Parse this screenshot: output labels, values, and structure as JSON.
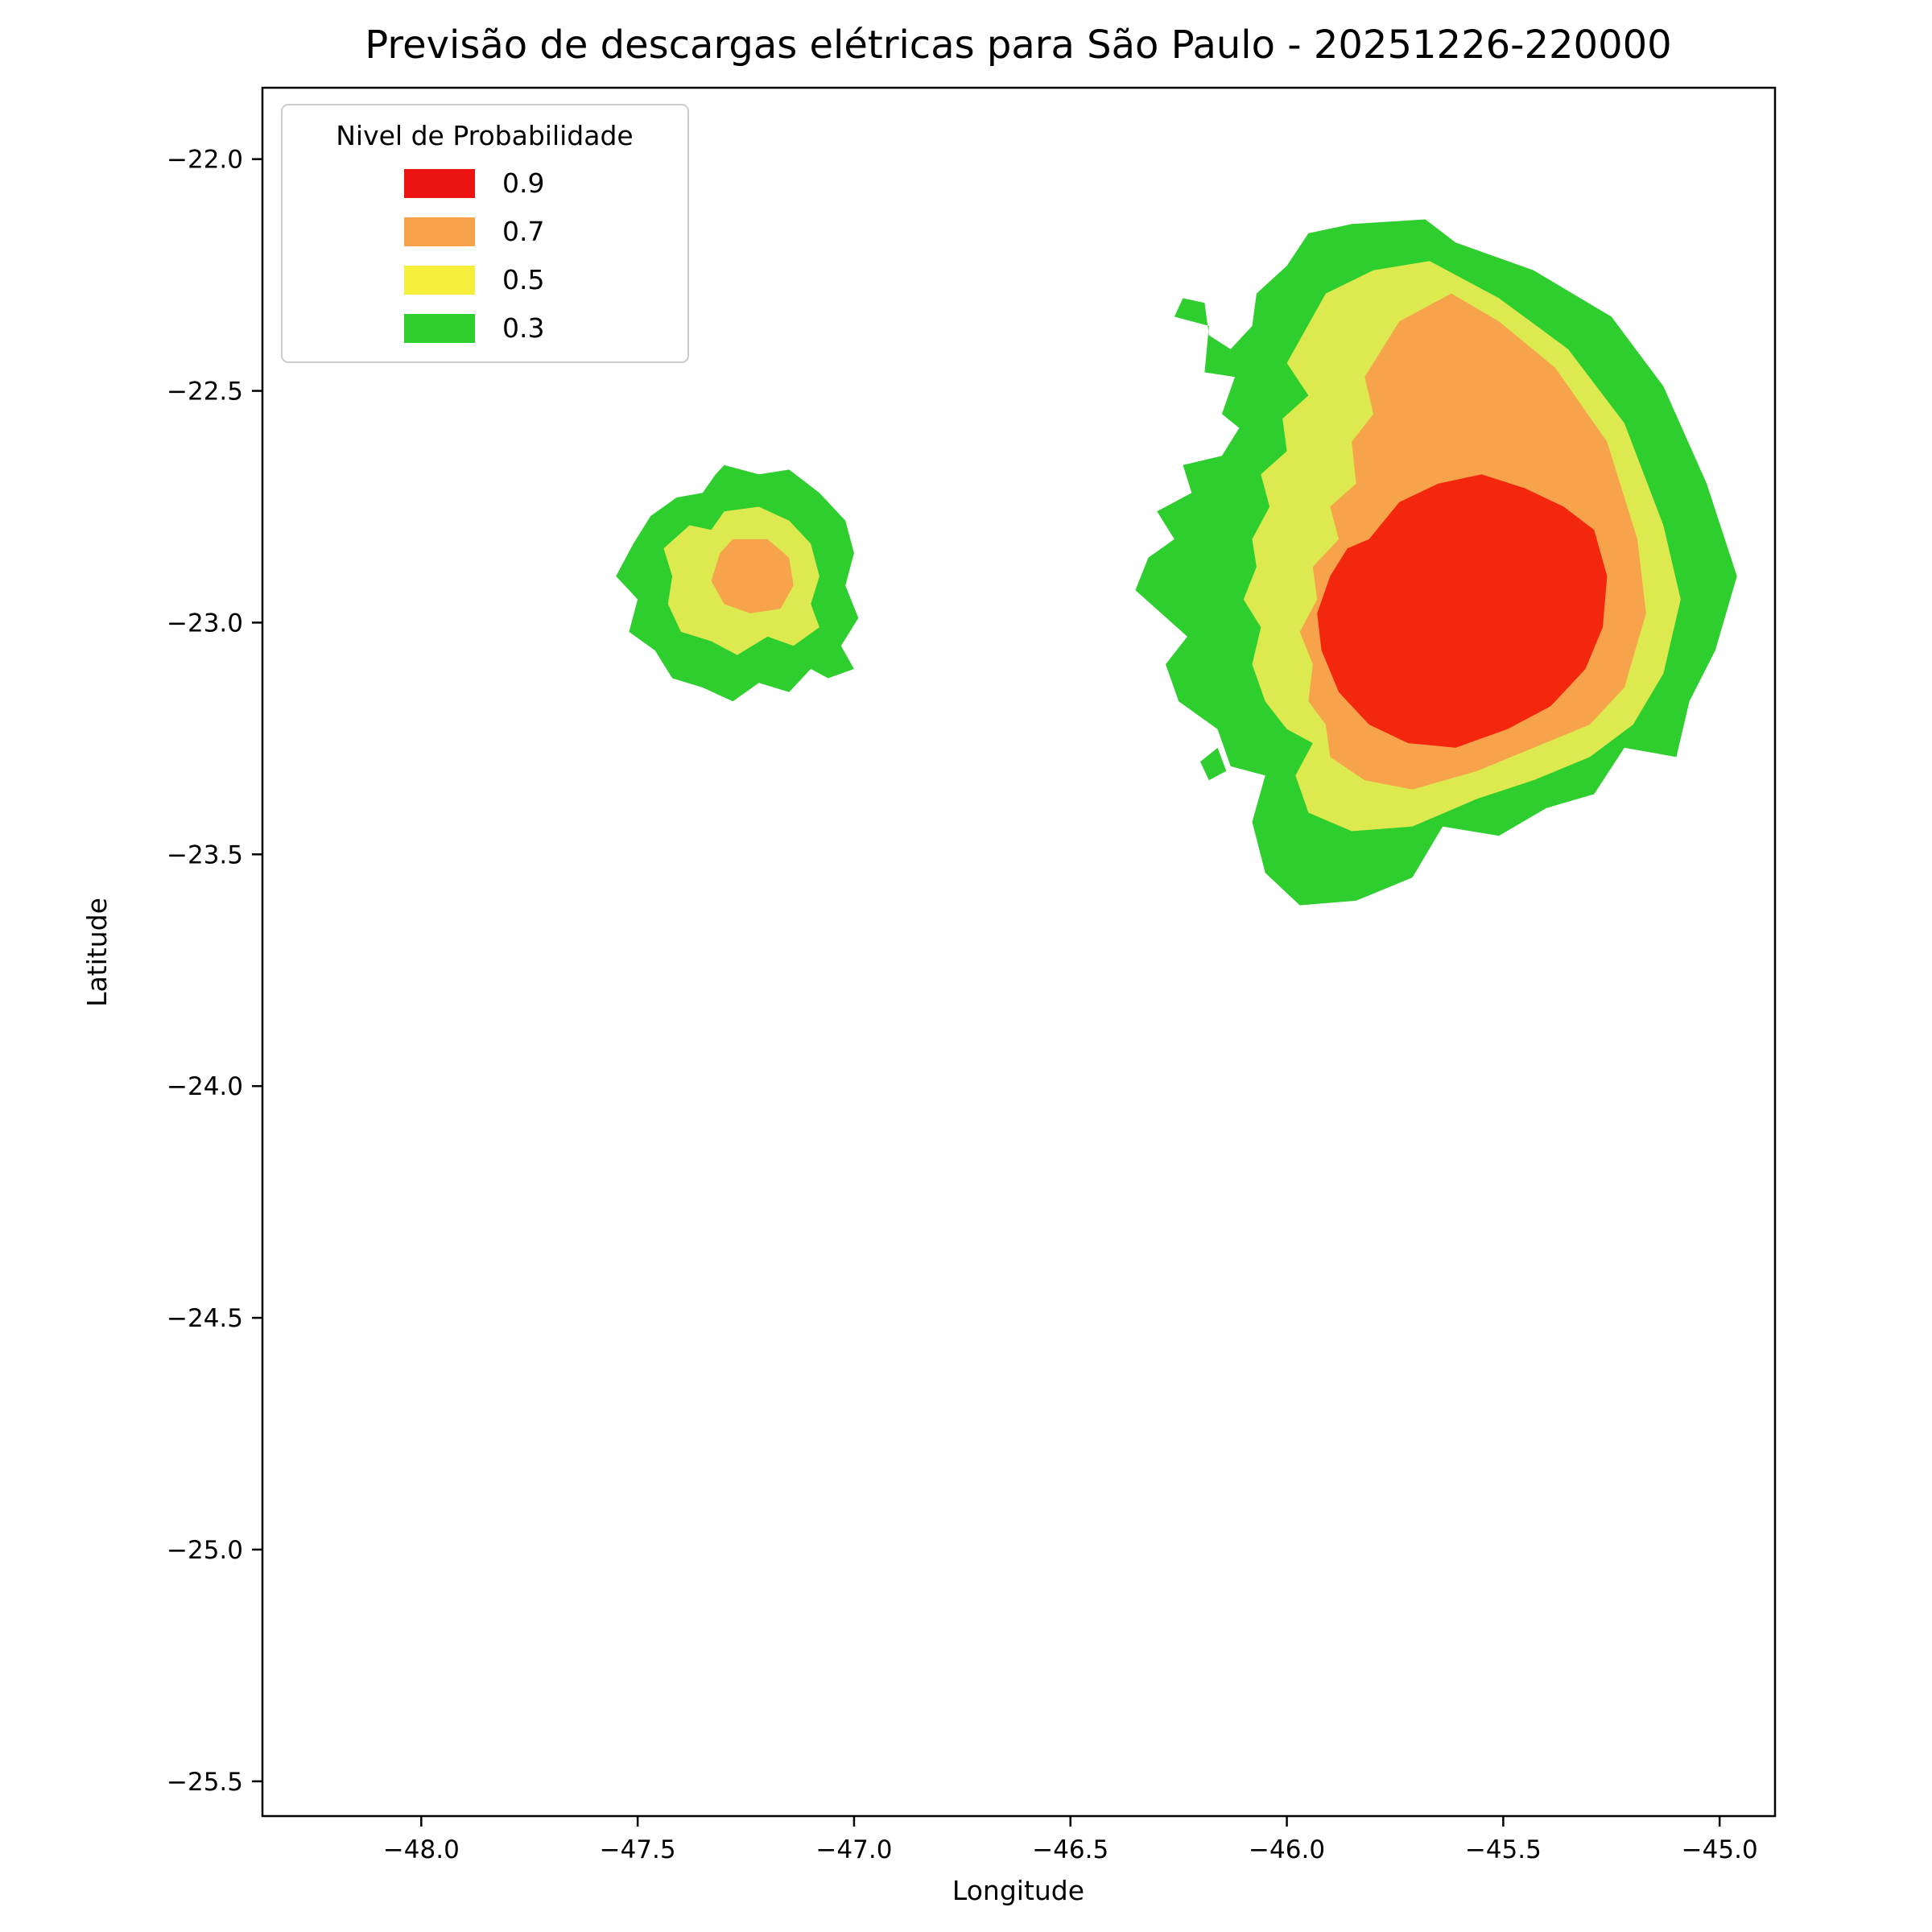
{
  "title": "Previsão de descargas elétricas para São Paulo - 20251226-220000",
  "axes": {
    "xlabel": "Longitude",
    "ylabel": "Latitude",
    "x_domain": [
      -48.367,
      -44.872
    ],
    "y_domain": [
      -21.846,
      -25.575
    ],
    "x_ticks": [
      {
        "value": -48.0,
        "label": "−48.0"
      },
      {
        "value": -47.5,
        "label": "−47.5"
      },
      {
        "value": -47.0,
        "label": "−47.0"
      },
      {
        "value": -46.5,
        "label": "−46.5"
      },
      {
        "value": -46.0,
        "label": "−46.0"
      },
      {
        "value": -45.5,
        "label": "−45.5"
      },
      {
        "value": -45.0,
        "label": "−45.0"
      }
    ],
    "y_ticks": [
      {
        "value": -22.0,
        "label": "−22.0"
      },
      {
        "value": -22.5,
        "label": "−22.5"
      },
      {
        "value": -23.0,
        "label": "−23.0"
      },
      {
        "value": -23.5,
        "label": "−23.5"
      },
      {
        "value": -24.0,
        "label": "−24.0"
      },
      {
        "value": -24.5,
        "label": "−24.5"
      },
      {
        "value": -25.0,
        "label": "−25.0"
      },
      {
        "value": -25.5,
        "label": "−25.5"
      }
    ]
  },
  "legend": {
    "title": "Nivel de Probabilidade",
    "entries": [
      {
        "label": "0.9",
        "color": "#EC1313"
      },
      {
        "label": "0.7",
        "color": "#F7A34B"
      },
      {
        "label": "0.5",
        "color": "#F5EF3B"
      },
      {
        "label": "0.3",
        "color": "#2FCE2F"
      }
    ]
  },
  "chart_data": {
    "type": "heatmap",
    "subtype": "filled-contour probability map",
    "title": "Previsão de descargas elétricas para São Paulo - 20251226-220000",
    "xlabel": "Longitude",
    "ylabel": "Latitude",
    "xlim": [
      -48.37,
      -44.87
    ],
    "ylim": [
      -25.58,
      -21.85
    ],
    "grid": false,
    "legend_position": "upper left",
    "levels": [
      0.3,
      0.5,
      0.7,
      0.9
    ],
    "level_colors": {
      "0.3": "#2FCE2F",
      "0.5": "#DCE94F",
      "0.7": "#F7A34B",
      "0.9": "#F2270E"
    },
    "cells": [
      {
        "name": "small-cell",
        "center": [
          -47.26,
          -22.91
        ],
        "max_level": 0.7
      },
      {
        "name": "main-cell",
        "center": [
          -45.58,
          -23.0
        ],
        "max_level": 0.9
      }
    ],
    "regions": [
      {
        "name": "small-cell-p03",
        "level": 0.3,
        "color": "#2FCE2F",
        "points": [
          [
            -47.3,
            -22.66
          ],
          [
            -47.22,
            -22.68
          ],
          [
            -47.15,
            -22.67
          ],
          [
            -47.08,
            -22.72
          ],
          [
            -47.02,
            -22.78
          ],
          [
            -47.0,
            -22.85
          ],
          [
            -47.02,
            -22.92
          ],
          [
            -46.99,
            -22.99
          ],
          [
            -47.03,
            -23.05
          ],
          [
            -47.0,
            -23.1
          ],
          [
            -47.06,
            -23.12
          ],
          [
            -47.1,
            -23.1
          ],
          [
            -47.15,
            -23.15
          ],
          [
            -47.22,
            -23.13
          ],
          [
            -47.28,
            -23.17
          ],
          [
            -47.35,
            -23.14
          ],
          [
            -47.42,
            -23.12
          ],
          [
            -47.46,
            -23.06
          ],
          [
            -47.52,
            -23.02
          ],
          [
            -47.5,
            -22.95
          ],
          [
            -47.55,
            -22.9
          ],
          [
            -47.51,
            -22.83
          ],
          [
            -47.47,
            -22.77
          ],
          [
            -47.41,
            -22.73
          ],
          [
            -47.35,
            -22.72
          ],
          [
            -47.32,
            -22.68
          ]
        ]
      },
      {
        "name": "small-cell-p05",
        "level": 0.5,
        "color": "#DCE94F",
        "points": [
          [
            -47.3,
            -22.76
          ],
          [
            -47.22,
            -22.75
          ],
          [
            -47.15,
            -22.78
          ],
          [
            -47.1,
            -22.83
          ],
          [
            -47.08,
            -22.9
          ],
          [
            -47.1,
            -22.96
          ],
          [
            -47.08,
            -23.01
          ],
          [
            -47.14,
            -23.05
          ],
          [
            -47.2,
            -23.03
          ],
          [
            -47.27,
            -23.07
          ],
          [
            -47.33,
            -23.04
          ],
          [
            -47.4,
            -23.02
          ],
          [
            -47.43,
            -22.96
          ],
          [
            -47.42,
            -22.9
          ],
          [
            -47.44,
            -22.84
          ],
          [
            -47.38,
            -22.79
          ],
          [
            -47.33,
            -22.8
          ]
        ]
      },
      {
        "name": "small-cell-p07",
        "level": 0.7,
        "color": "#F7A34B",
        "points": [
          [
            -47.28,
            -22.82
          ],
          [
            -47.2,
            -22.82
          ],
          [
            -47.15,
            -22.86
          ],
          [
            -47.14,
            -22.92
          ],
          [
            -47.17,
            -22.97
          ],
          [
            -47.24,
            -22.98
          ],
          [
            -47.3,
            -22.96
          ],
          [
            -47.33,
            -22.91
          ],
          [
            -47.31,
            -22.85
          ]
        ]
      },
      {
        "name": "main-cell-p03",
        "level": 0.3,
        "color": "#2FCE2F",
        "points": [
          [
            -46.26,
            -22.34
          ],
          [
            -46.24,
            -22.3
          ],
          [
            -46.19,
            -22.31
          ],
          [
            -46.18,
            -22.38
          ],
          [
            -46.13,
            -22.41
          ],
          [
            -46.08,
            -22.36
          ],
          [
            -46.07,
            -22.29
          ],
          [
            -46.0,
            -22.23
          ],
          [
            -45.95,
            -22.16
          ],
          [
            -45.85,
            -22.14
          ],
          [
            -45.68,
            -22.13
          ],
          [
            -45.61,
            -22.18
          ],
          [
            -45.43,
            -22.24
          ],
          [
            -45.25,
            -22.34
          ],
          [
            -45.13,
            -22.49
          ],
          [
            -45.03,
            -22.7
          ],
          [
            -44.96,
            -22.9
          ],
          [
            -45.01,
            -23.06
          ],
          [
            -45.07,
            -23.17
          ],
          [
            -45.1,
            -23.29
          ],
          [
            -45.22,
            -23.27
          ],
          [
            -45.29,
            -23.37
          ],
          [
            -45.4,
            -23.4
          ],
          [
            -45.51,
            -23.46
          ],
          [
            -45.64,
            -23.44
          ],
          [
            -45.71,
            -23.55
          ],
          [
            -45.84,
            -23.6
          ],
          [
            -45.97,
            -23.61
          ],
          [
            -46.05,
            -23.54
          ],
          [
            -46.08,
            -23.43
          ],
          [
            -46.05,
            -23.33
          ],
          [
            -46.13,
            -23.31
          ],
          [
            -46.16,
            -23.23
          ],
          [
            -46.25,
            -23.17
          ],
          [
            -46.28,
            -23.09
          ],
          [
            -46.23,
            -23.03
          ],
          [
            -46.29,
            -22.98
          ],
          [
            -46.35,
            -22.93
          ],
          [
            -46.32,
            -22.86
          ],
          [
            -46.26,
            -22.82
          ],
          [
            -46.3,
            -22.76
          ],
          [
            -46.22,
            -22.72
          ],
          [
            -46.24,
            -22.66
          ],
          [
            -46.15,
            -22.64
          ],
          [
            -46.11,
            -22.58
          ],
          [
            -46.15,
            -22.55
          ],
          [
            -46.12,
            -22.47
          ],
          [
            -46.19,
            -22.46
          ],
          [
            -46.18,
            -22.36
          ]
        ]
      },
      {
        "name": "main-cell-speck-p03",
        "level": 0.3,
        "color": "#2FCE2F",
        "points": [
          [
            -46.2,
            -23.3
          ],
          [
            -46.16,
            -23.27
          ],
          [
            -46.14,
            -23.32
          ],
          [
            -46.18,
            -23.34
          ]
        ]
      },
      {
        "name": "main-cell-p05",
        "level": 0.5,
        "color": "#DCE94F",
        "points": [
          [
            -46.0,
            -22.44
          ],
          [
            -45.91,
            -22.29
          ],
          [
            -45.8,
            -22.24
          ],
          [
            -45.67,
            -22.22
          ],
          [
            -45.51,
            -22.3
          ],
          [
            -45.35,
            -22.41
          ],
          [
            -45.22,
            -22.57
          ],
          [
            -45.13,
            -22.79
          ],
          [
            -45.09,
            -22.95
          ],
          [
            -45.13,
            -23.11
          ],
          [
            -45.2,
            -23.22
          ],
          [
            -45.3,
            -23.29
          ],
          [
            -45.43,
            -23.34
          ],
          [
            -45.56,
            -23.38
          ],
          [
            -45.71,
            -23.44
          ],
          [
            -45.85,
            -23.45
          ],
          [
            -45.95,
            -23.41
          ],
          [
            -45.98,
            -23.33
          ],
          [
            -45.94,
            -23.26
          ],
          [
            -46.0,
            -23.23
          ],
          [
            -46.05,
            -23.17
          ],
          [
            -46.08,
            -23.09
          ],
          [
            -46.06,
            -23.01
          ],
          [
            -46.1,
            -22.95
          ],
          [
            -46.07,
            -22.88
          ],
          [
            -46.08,
            -22.82
          ],
          [
            -46.04,
            -22.75
          ],
          [
            -46.06,
            -22.68
          ],
          [
            -46.0,
            -22.63
          ],
          [
            -46.01,
            -22.56
          ],
          [
            -45.95,
            -22.51
          ]
        ]
      },
      {
        "name": "main-cell-p07",
        "level": 0.7,
        "color": "#F7A34B",
        "points": [
          [
            -45.82,
            -22.47
          ],
          [
            -45.74,
            -22.35
          ],
          [
            -45.62,
            -22.29
          ],
          [
            -45.51,
            -22.35
          ],
          [
            -45.38,
            -22.45
          ],
          [
            -45.26,
            -22.61
          ],
          [
            -45.19,
            -22.82
          ],
          [
            -45.17,
            -22.98
          ],
          [
            -45.22,
            -23.14
          ],
          [
            -45.3,
            -23.22
          ],
          [
            -45.43,
            -23.27
          ],
          [
            -45.56,
            -23.32
          ],
          [
            -45.71,
            -23.36
          ],
          [
            -45.82,
            -23.34
          ],
          [
            -45.9,
            -23.29
          ],
          [
            -45.91,
            -23.22
          ],
          [
            -45.95,
            -23.17
          ],
          [
            -45.94,
            -23.09
          ],
          [
            -45.97,
            -23.02
          ],
          [
            -45.93,
            -22.95
          ],
          [
            -45.94,
            -22.88
          ],
          [
            -45.88,
            -22.82
          ],
          [
            -45.9,
            -22.75
          ],
          [
            -45.84,
            -22.7
          ],
          [
            -45.85,
            -22.61
          ],
          [
            -45.8,
            -22.55
          ]
        ]
      },
      {
        "name": "main-cell-p09",
        "level": 0.9,
        "color": "#F2270E",
        "points": [
          [
            -45.81,
            -22.82
          ],
          [
            -45.74,
            -22.74
          ],
          [
            -45.65,
            -22.7
          ],
          [
            -45.55,
            -22.68
          ],
          [
            -45.45,
            -22.71
          ],
          [
            -45.36,
            -22.75
          ],
          [
            -45.29,
            -22.8
          ],
          [
            -45.26,
            -22.9
          ],
          [
            -45.27,
            -23.01
          ],
          [
            -45.31,
            -23.1
          ],
          [
            -45.39,
            -23.18
          ],
          [
            -45.49,
            -23.23
          ],
          [
            -45.61,
            -23.27
          ],
          [
            -45.72,
            -23.26
          ],
          [
            -45.81,
            -23.22
          ],
          [
            -45.88,
            -23.15
          ],
          [
            -45.92,
            -23.06
          ],
          [
            -45.93,
            -22.98
          ],
          [
            -45.9,
            -22.9
          ],
          [
            -45.86,
            -22.84
          ]
        ]
      }
    ]
  }
}
